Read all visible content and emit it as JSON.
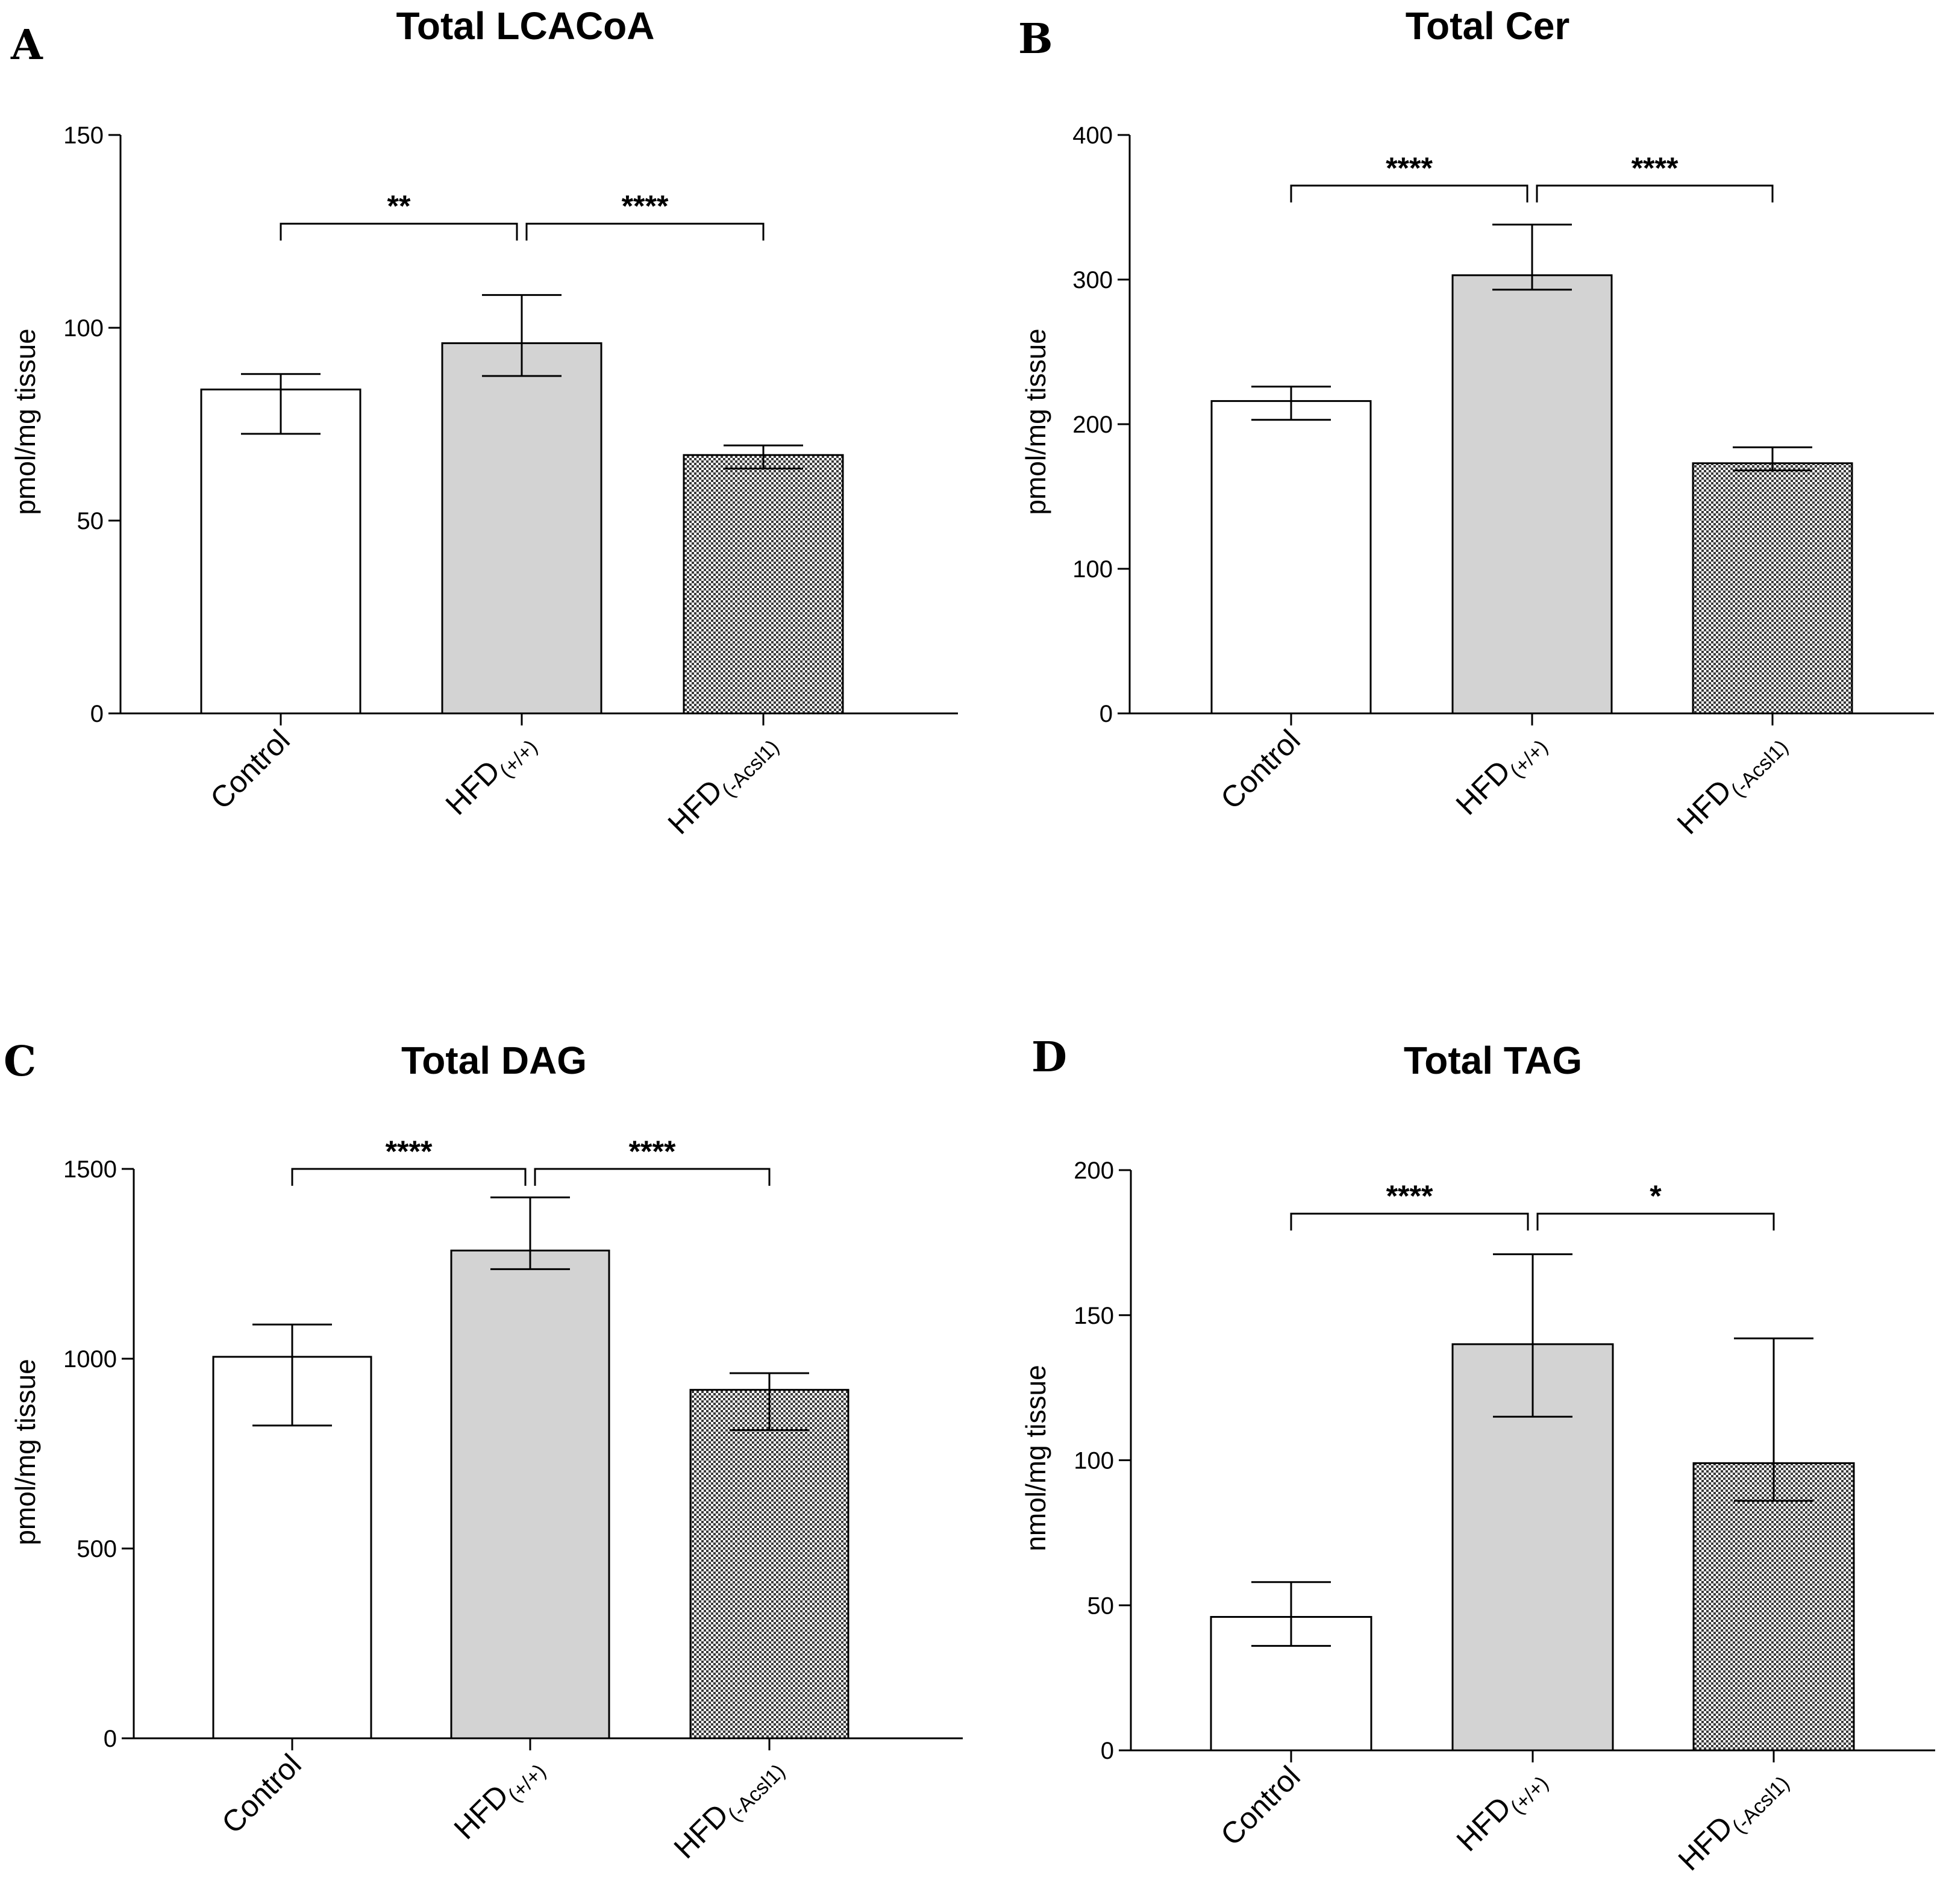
{
  "chart_data": [
    {
      "type": "bar",
      "panel": "A",
      "title": "Total LCACoA",
      "ylabel": "pmol/mg tissue",
      "ylim": [
        0,
        150
      ],
      "yticks": [
        0,
        50,
        100,
        150
      ],
      "categories": [
        {
          "main": "Control",
          "sub": ""
        },
        {
          "main": "HFD",
          "sub": "(+/+)"
        },
        {
          "main": "HFD",
          "sub": "(-Acsl1)"
        }
      ],
      "values": [
        84,
        96,
        67
      ],
      "error_high": [
        88,
        108.5,
        69.5
      ],
      "error_low": [
        72.5,
        87.5,
        63.5
      ],
      "fills": [
        "white",
        "gray",
        "checker"
      ],
      "significance": [
        {
          "from": 0,
          "to": 1,
          "label": "**",
          "y": 127
        },
        {
          "from": 1,
          "to": 2,
          "label": "****",
          "y": 127
        }
      ]
    },
    {
      "type": "bar",
      "panel": "B",
      "title": "Total Cer",
      "ylabel": "pmol/mg tissue",
      "ylim": [
        0,
        400
      ],
      "yticks": [
        0,
        100,
        200,
        300,
        400
      ],
      "categories": [
        {
          "main": "Control",
          "sub": ""
        },
        {
          "main": "HFD",
          "sub": "(+/+)"
        },
        {
          "main": "HFD",
          "sub": "(-Acsl1)"
        }
      ],
      "values": [
        216,
        303,
        173
      ],
      "error_high": [
        226,
        338,
        184
      ],
      "error_low": [
        203,
        293,
        168
      ],
      "fills": [
        "white",
        "gray",
        "checker"
      ],
      "significance": [
        {
          "from": 0,
          "to": 1,
          "label": "****",
          "y": 365
        },
        {
          "from": 1,
          "to": 2,
          "label": "****",
          "y": 365
        }
      ]
    },
    {
      "type": "bar",
      "panel": "C",
      "title": "Total DAG",
      "ylabel": "pmol/mg tissue",
      "ylim": [
        0,
        1500
      ],
      "yticks": [
        0,
        500,
        1000,
        1500
      ],
      "categories": [
        {
          "main": "Control",
          "sub": ""
        },
        {
          "main": "HFD",
          "sub": "(+/+)"
        },
        {
          "main": "HFD",
          "sub": "(-Acsl1)"
        }
      ],
      "values": [
        1005,
        1285,
        918
      ],
      "error_high": [
        1090,
        1425,
        962
      ],
      "error_low": [
        824,
        1236,
        812
      ],
      "fills": [
        "white",
        "gray",
        "checker"
      ],
      "significance": [
        {
          "from": 0,
          "to": 1,
          "label": "****",
          "y": 1500
        },
        {
          "from": 1,
          "to": 2,
          "label": "****",
          "y": 1500
        }
      ]
    },
    {
      "type": "bar",
      "panel": "D",
      "title": "Total TAG",
      "ylabel": "nmol/mg tissue",
      "ylim": [
        0,
        200
      ],
      "yticks": [
        0,
        50,
        100,
        150,
        200
      ],
      "categories": [
        {
          "main": "Control",
          "sub": ""
        },
        {
          "main": "HFD",
          "sub": "(+/+)"
        },
        {
          "main": "HFD",
          "sub": "(-Acsl1)"
        }
      ],
      "values": [
        46,
        140,
        99
      ],
      "error_high": [
        58,
        171,
        142
      ],
      "error_low": [
        36,
        115,
        86
      ],
      "fills": [
        "white",
        "gray",
        "checker"
      ],
      "significance": [
        {
          "from": 0,
          "to": 1,
          "label": "****",
          "y": 185
        },
        {
          "from": 1,
          "to": 2,
          "label": "*",
          "y": 185
        }
      ]
    }
  ]
}
